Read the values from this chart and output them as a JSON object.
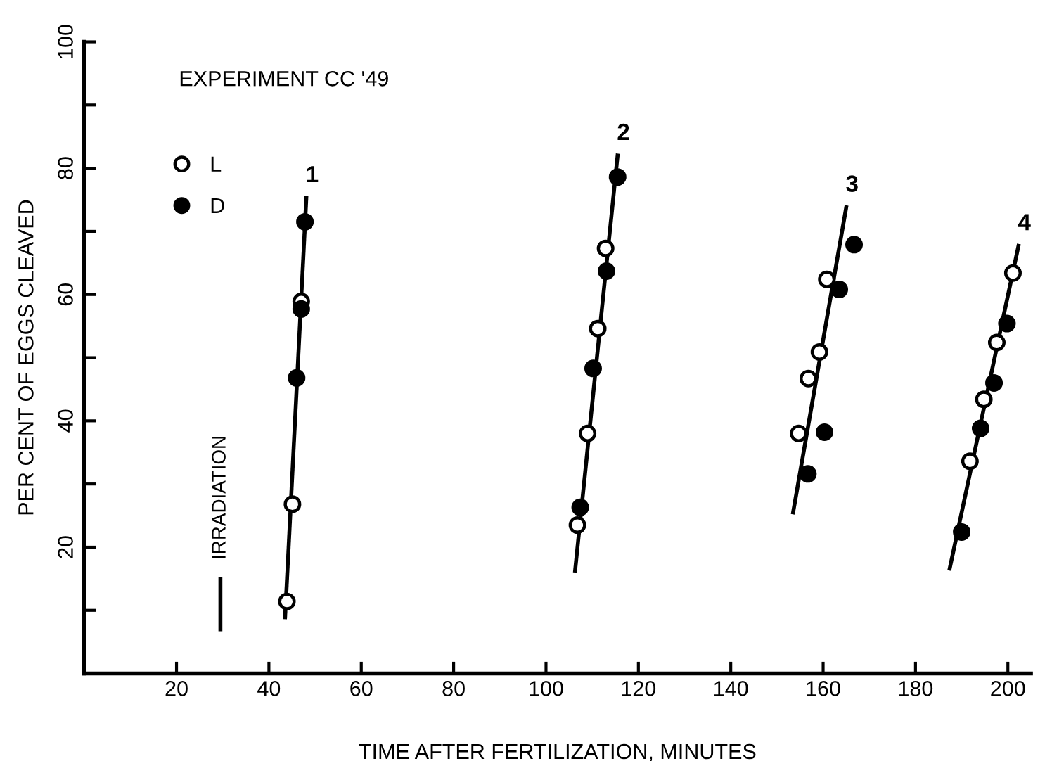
{
  "chart_data": {
    "type": "scatter",
    "title": "EXPERIMENT CC '49",
    "xlabel": "TIME AFTER FERTILIZATION, MINUTES",
    "ylabel": "PER CENT OF EGGS CLEAVED",
    "xlim": [
      0,
      205
    ],
    "ylim": [
      0,
      100
    ],
    "xticks": [
      20,
      40,
      60,
      80,
      100,
      120,
      140,
      160,
      180,
      200
    ],
    "yticks": [
      {
        "value": 10,
        "label": null
      },
      20,
      {
        "value": 30,
        "label": null
      },
      40,
      {
        "value": 50,
        "label": null
      },
      60,
      {
        "value": 70,
        "label": null
      },
      80,
      {
        "value": 90,
        "label": null
      },
      100
    ],
    "grid": false,
    "legend": "top left",
    "ref_lines": [
      {
        "axis": "x",
        "value": 29.5,
        "label": "IRRADIATION"
      }
    ],
    "series": [
      {
        "name": "L",
        "marker": "circle",
        "color": "#ffffff",
        "x": [
          43.9,
          45.1,
          47,
          106.8,
          109,
          111.2,
          112.9,
          154.7,
          156.8,
          159.2,
          160.8,
          191.8,
          194.8,
          197.6,
          201.1
        ],
        "values": [
          11.4,
          26.8,
          58.9,
          23.5,
          38,
          54.6,
          67.3,
          38,
          46.7,
          50.9,
          62.4,
          33.6,
          43.4,
          52.4,
          63.4
        ]
      },
      {
        "name": "D",
        "marker": "circle",
        "color": "#000000",
        "x": [
          46,
          47,
          47.8,
          107.4,
          110.2,
          113.1,
          115.5,
          156.7,
          160.3,
          163.5,
          166.7,
          190,
          194.1,
          197,
          199.8
        ],
        "values": [
          46.8,
          57.7,
          71.5,
          26.3,
          48.3,
          63.7,
          78.6,
          31.6,
          38.2,
          60.8,
          67.9,
          22.4,
          38.8,
          46,
          55.4
        ]
      },
      {
        "type": "line",
        "marker": "none",
        "color": "#000000",
        "x": [
          43.5,
          48.1
        ],
        "values": [
          8.9,
          75.3
        ]
      },
      {
        "type": "line",
        "marker": "none",
        "color": "#000000",
        "x": [
          106.3,
          115.5
        ],
        "values": [
          16.3,
          82
        ]
      },
      {
        "type": "line",
        "marker": "none",
        "color": "#000000",
        "x": [
          153.5,
          165
        ],
        "values": [
          25.5,
          73.8
        ]
      },
      {
        "type": "line",
        "marker": "none",
        "color": "#000000",
        "x": [
          187.4,
          202.3
        ],
        "values": [
          16.6,
          67.7
        ]
      }
    ],
    "annotations": [
      {
        "text": "1",
        "x": 48.1,
        "y": 75.3
      },
      {
        "text": "2",
        "x": 115.5,
        "y": 82
      },
      {
        "text": "3",
        "x": 165,
        "y": 73.8
      },
      {
        "text": "4",
        "x": 202.3,
        "y": 67.7
      }
    ]
  }
}
